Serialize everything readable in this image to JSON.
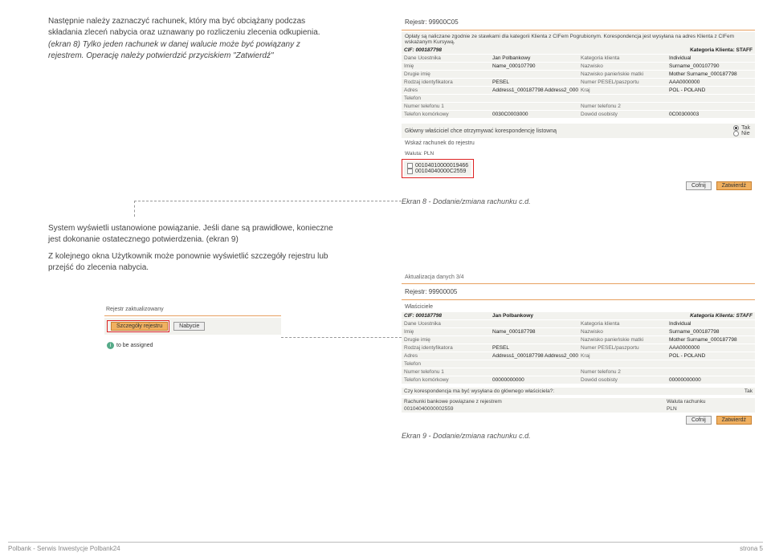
{
  "left_text": {
    "p1": "Następnie należy zaznaczyć rachunek, który ma być obciążany podczas składania zleceń nabycia oraz uznawany po rozliczeniu zlecenia odkupienia.",
    "p2": "(ekran 8) Tylko jeden rachunek w danej walucie może być powiązany z rejestrem. Operację należy potwierdzić przyciskiem \"Zatwierdź\"",
    "p3": "System wyświetli ustanowione powiązanie. Jeśli dane są prawidłowe, konieczne jest dokonanie ostatecznego potwierdzenia. (ekran 9)",
    "p4": "Z kolejnego okna Użytkownik może ponownie wyświetlić szczegóły rejestru lub przejść do zlecenia nabycia."
  },
  "ekran8": {
    "header": "Rejestr: 99900C05",
    "note": "Opłaty są naliczane zgodnie ze stawkami dla kategorii Klienta z CIFem Pogrubionym. Korespondencja jest wysyłana na adres Klienta z CIFem wskazanym Kursywą.",
    "cif": "CIF: 000187798",
    "kat": "Kategoria Klienta: STAFF",
    "rows": [
      [
        "Dane Ucestnika",
        "Jan Polbankowy",
        "Kategoria klienta",
        "Individual"
      ],
      [
        "Imię",
        "Name_000107790",
        "Nazwisko",
        "Surname_000107790"
      ],
      [
        "Drugie imię",
        "",
        "Nazwisko panieńskie matki",
        "Mother Surname_000187798"
      ],
      [
        "Rodzaj identyfikatora",
        "PESEL",
        "Numer PESEL/paszportu",
        "AAA0000000"
      ],
      [
        "Adres",
        "Address1_000187798 Address2_000187798",
        "Kraj",
        "POL - POLAND"
      ]
    ],
    "rows2": [
      [
        "Telefon",
        "",
        "",
        ""
      ],
      [
        "Numer telefonu 1",
        "",
        "Numer telefonu 2",
        ""
      ],
      [
        "Telefon komórkowy",
        "0030C0003000",
        "Dowód osobisty",
        "0C00300003"
      ]
    ],
    "korespond": "Główny właściciel chce otrzymywać korespondencję listowną",
    "tak": "Tak",
    "nie": "Nie",
    "wskaz": "Wskaż rachunek do rejestru",
    "waluta": "Waluta: PLN",
    "acct1": "00104010000019466",
    "acct2": "00104040000C2559",
    "btn_cofnij": "Cofnij",
    "btn_zatw": "Zatwierdź",
    "caption": "Ekran 8 - Dodanie/zmiana rachunku c.d."
  },
  "ekran9": {
    "aktual": "Aktualizacja danych 3/4",
    "header": "Rejestr: 99900005",
    "wlasc": "Właściciele",
    "cif": "CIF: 000187798",
    "jan": "Jan Polbankowy",
    "kat": "Kategoria Klienta: STAFF",
    "rows": [
      [
        "Dane Ucestnika",
        "",
        "Kategoria klienta",
        "Individual"
      ],
      [
        "Imię",
        "Name_000187798",
        "Nazwisko",
        "Surname_000187798"
      ],
      [
        "Drugie imię",
        "",
        "Nazwisko panieńskie matki",
        "Mother Surname_000187798"
      ],
      [
        "Rodzaj identyfikatora",
        "PESEL",
        "Numer PESEL/paszportu",
        "AAA0000000"
      ],
      [
        "Adres",
        "Address1_000187798 Address2_000187798",
        "Kraj",
        "POL - POLAND"
      ]
    ],
    "rows2": [
      [
        "Telefon",
        "",
        "",
        ""
      ],
      [
        "Numer telefonu 1",
        "",
        "Numer telefonu 2",
        ""
      ],
      [
        "Telefon komórkowy",
        "00000000000",
        "Dowód osobisty",
        "00000000000"
      ]
    ],
    "koresp_q": "Czy korespondencja ma być wysyłana do głównego właściciela?:",
    "tak": "Tak",
    "rach_label": "Rachunki bankowe powiązane z rejestrem",
    "wal_label": "Waluta rachunku",
    "rach": "00104040000002559",
    "wal": "PLN",
    "btn_cofnij": "Cofnij",
    "btn_zatw": "Zatwierdź",
    "caption": "Ekran 9 - Dodanie/zmiana rachunku c.d."
  },
  "popup": {
    "title": "Rejestr zaktualizowany",
    "szcz": "Szczegóły rejestru",
    "nab": "Nabycie",
    "assign": "to be assigned"
  },
  "footer": {
    "left": "Polbank - Serwis Inwestycje Polbank24",
    "right": "strona  5"
  }
}
